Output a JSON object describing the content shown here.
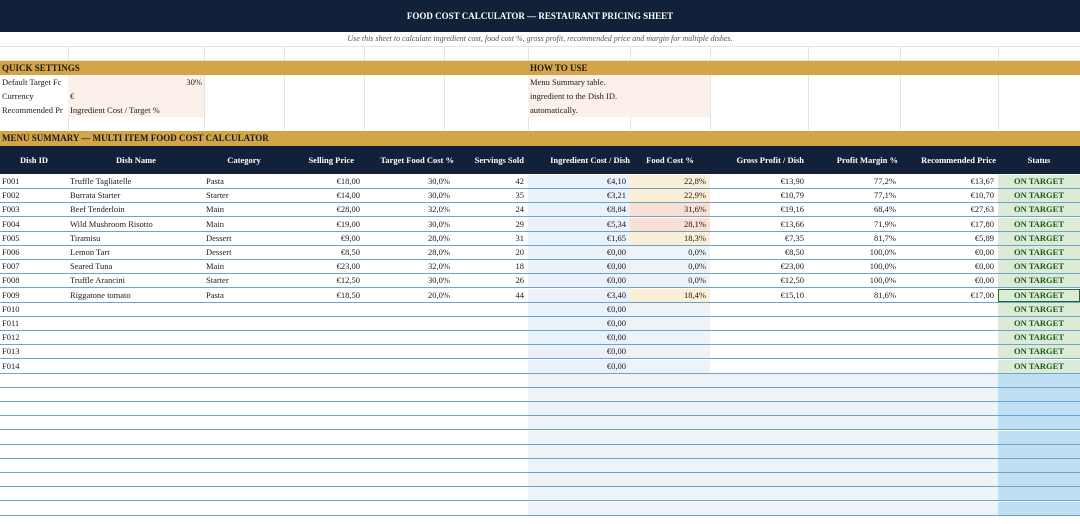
{
  "title": "FOOD COST CALCULATOR — RESTAURANT PRICING SHEET",
  "subtitle": "Use this sheet to calculate ingredient cost, food cost %, gross profit, recommended price and margin for multiple dishes.",
  "quick_settings": {
    "heading": "QUICK SETTINGS",
    "rows": [
      {
        "label": "Default Target Fc",
        "value": "30%"
      },
      {
        "label": "Currency",
        "value": "€"
      },
      {
        "label": "Recommended Pr",
        "value": "Ingredient Cost / Target %"
      }
    ]
  },
  "how_to_use": {
    "heading": "HOW TO USE",
    "lines": [
      "Menu Summary table.",
      "ingredient to the Dish ID.",
      "automatically."
    ]
  },
  "menu_summary": {
    "heading": "MENU SUMMARY — MULTI ITEM FOOD COST CALCULATOR",
    "columns": [
      "Dish ID",
      "Dish Name",
      "Category",
      "Selling Price",
      "Target Food Cost %",
      "Servings Sold",
      "Ingredient Cost / Dish",
      "Food Cost %",
      "Gross Profit / Dish",
      "Profit Margin %",
      "Recommended Price",
      "Status"
    ],
    "rows": [
      {
        "id": "F001",
        "name": "Truffle Tagliatelle",
        "category": "Pasta",
        "price": "€18,00",
        "target": "30,0%",
        "servings": "42",
        "ingredient": "€4,10",
        "food_cost": "22,8%",
        "gross": "€13,90",
        "margin": "77,2%",
        "recommended": "€13,67",
        "status": "ON TARGET"
      },
      {
        "id": "F002",
        "name": "Burrata Starter",
        "category": "Starter",
        "price": "€14,00",
        "target": "30,0%",
        "servings": "35",
        "ingredient": "€3,21",
        "food_cost": "22,9%",
        "gross": "€10,79",
        "margin": "77,1%",
        "recommended": "€10,70",
        "status": "ON TARGET"
      },
      {
        "id": "F003",
        "name": "Beef Tenderloin",
        "category": "Main",
        "price": "€28,00",
        "target": "32,0%",
        "servings": "24",
        "ingredient": "€8,84",
        "food_cost": "31,6%",
        "gross": "€19,16",
        "margin": "68,4%",
        "recommended": "€27,63",
        "status": "ON TARGET"
      },
      {
        "id": "F004",
        "name": "Wild Mushroom Risotto",
        "category": "Main",
        "price": "€19,00",
        "target": "30,0%",
        "servings": "29",
        "ingredient": "€5,34",
        "food_cost": "28,1%",
        "gross": "€13,66",
        "margin": "71,9%",
        "recommended": "€17,80",
        "status": "ON TARGET"
      },
      {
        "id": "F005",
        "name": "Tiramisu",
        "category": "Dessert",
        "price": "€9,00",
        "target": "28,0%",
        "servings": "31",
        "ingredient": "€1,65",
        "food_cost": "18,3%",
        "gross": "€7,35",
        "margin": "81,7%",
        "recommended": "€5,89",
        "status": "ON TARGET"
      },
      {
        "id": "F006",
        "name": "Lemon Tart",
        "category": "Dessert",
        "price": "€8,50",
        "target": "28,0%",
        "servings": "20",
        "ingredient": "€0,00",
        "food_cost": "0,0%",
        "gross": "€8,50",
        "margin": "100,0%",
        "recommended": "€0,00",
        "status": "ON TARGET"
      },
      {
        "id": "F007",
        "name": "Seared Tuna",
        "category": "Main",
        "price": "€23,00",
        "target": "32,0%",
        "servings": "18",
        "ingredient": "€0,00",
        "food_cost": "0,0%",
        "gross": "€23,00",
        "margin": "100,0%",
        "recommended": "€0,00",
        "status": "ON TARGET"
      },
      {
        "id": "F008",
        "name": "Truffle Arancini",
        "category": "Starter",
        "price": "€12,50",
        "target": "30,0%",
        "servings": "26",
        "ingredient": "€0,00",
        "food_cost": "0,0%",
        "gross": "€12,50",
        "margin": "100,0%",
        "recommended": "€0,00",
        "status": "ON TARGET"
      },
      {
        "id": "F009",
        "name": "Riggatone tomato",
        "category": "Pasta",
        "price": "€18,50",
        "target": "20,0%",
        "servings": "44",
        "ingredient": "€3,40",
        "food_cost": "18,4%",
        "gross": "€15,10",
        "margin": "81,6%",
        "recommended": "€17,00",
        "status": "ON TARGET"
      },
      {
        "id": "F010",
        "name": "",
        "category": "",
        "price": "",
        "target": "",
        "servings": "",
        "ingredient": "€0,00",
        "food_cost": "",
        "gross": "",
        "margin": "",
        "recommended": "",
        "status": "ON TARGET"
      },
      {
        "id": "F011",
        "name": "",
        "category": "",
        "price": "",
        "target": "",
        "servings": "",
        "ingredient": "€0,00",
        "food_cost": "",
        "gross": "",
        "margin": "",
        "recommended": "",
        "status": "ON TARGET"
      },
      {
        "id": "F012",
        "name": "",
        "category": "",
        "price": "",
        "target": "",
        "servings": "",
        "ingredient": "€0,00",
        "food_cost": "",
        "gross": "",
        "margin": "",
        "recommended": "",
        "status": "ON TARGET"
      },
      {
        "id": "F013",
        "name": "",
        "category": "",
        "price": "",
        "target": "",
        "servings": "",
        "ingredient": "€0,00",
        "food_cost": "",
        "gross": "",
        "margin": "",
        "recommended": "",
        "status": "ON TARGET"
      },
      {
        "id": "F014",
        "name": "",
        "category": "",
        "price": "",
        "target": "",
        "servings": "",
        "ingredient": "€0,00",
        "food_cost": "",
        "gross": "",
        "margin": "",
        "recommended": "",
        "status": "ON TARGET"
      }
    ]
  },
  "colors": {
    "header_bg": "#13203a",
    "section_bg": "#d4a548",
    "status_bg": "#dcebd6",
    "status_text": "#1a5a1a",
    "row_line": "#6ba4cc"
  }
}
